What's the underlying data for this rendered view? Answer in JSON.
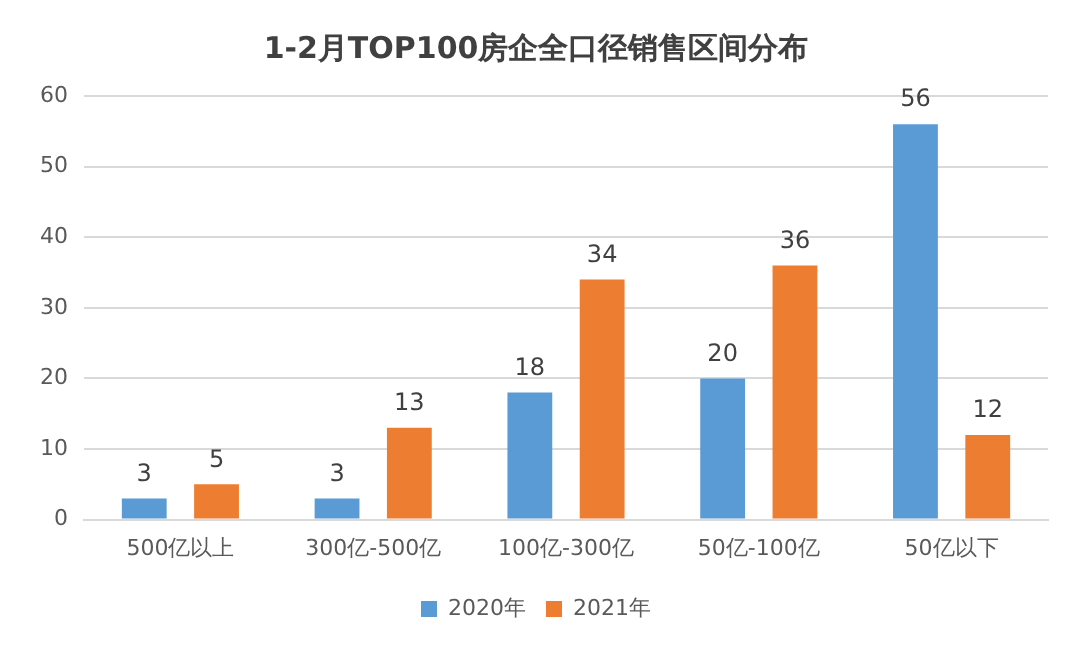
{
  "chart_data": {
    "type": "bar",
    "title": "1-2月TOP100房企全口径销售区间分布",
    "categories": [
      "500亿以上",
      "300亿-500亿",
      "100亿-300亿",
      "50亿-100亿",
      "50亿以下"
    ],
    "series": [
      {
        "name": "2020年",
        "color": "#5b9bd5",
        "values": [
          3,
          3,
          18,
          20,
          56
        ]
      },
      {
        "name": "2021年",
        "color": "#ed7d31",
        "values": [
          5,
          13,
          34,
          36,
          12
        ]
      }
    ],
    "ylim": [
      0,
      60
    ],
    "yticks": [
      0,
      10,
      20,
      30,
      40,
      50,
      60
    ],
    "grid": "y",
    "legend": "bottom",
    "data_labels": true
  }
}
